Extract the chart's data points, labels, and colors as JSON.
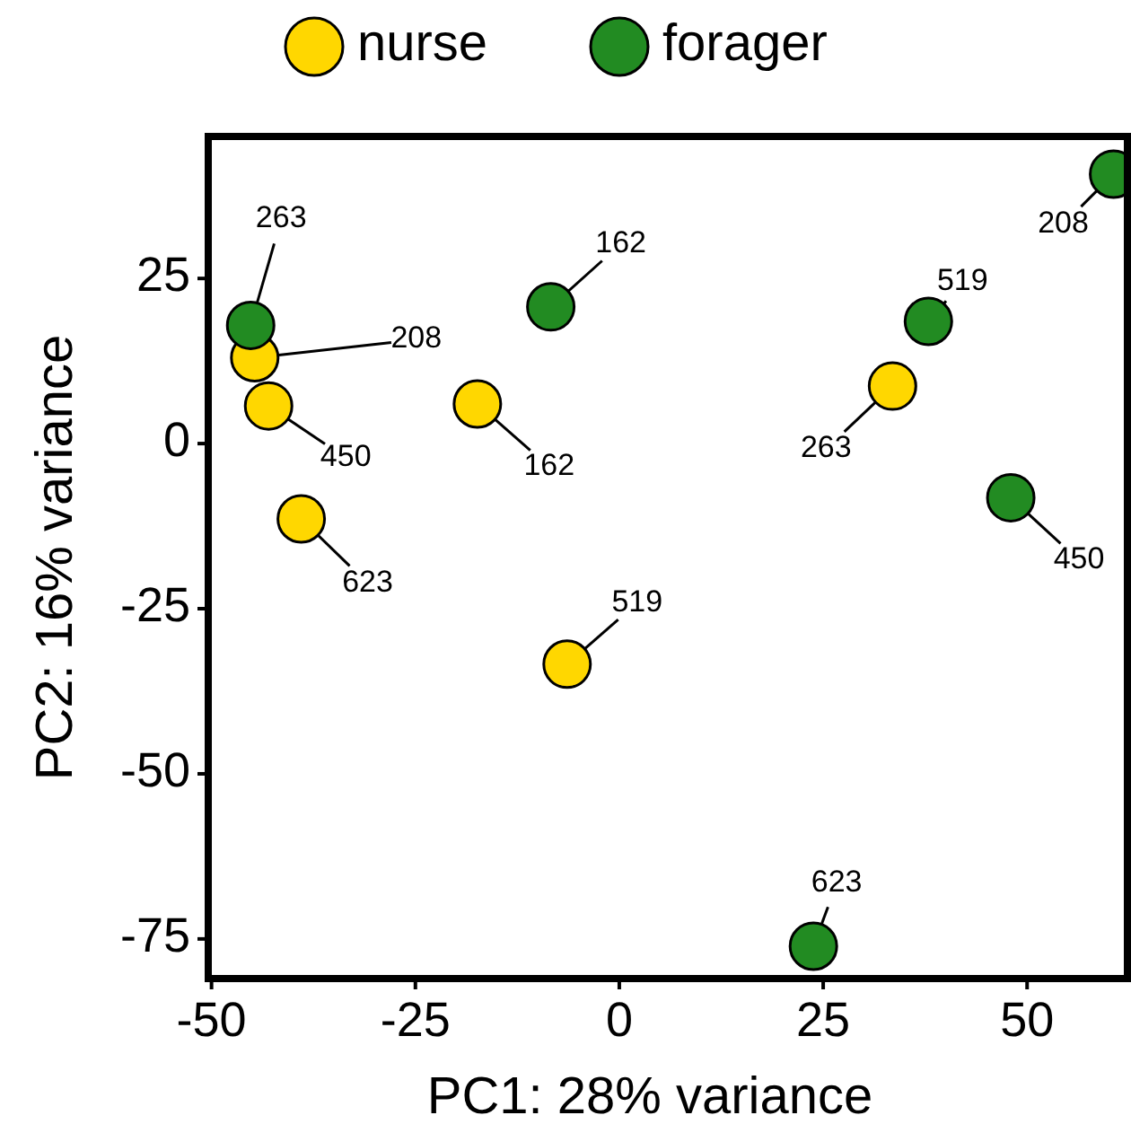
{
  "chart_data": {
    "type": "scatter",
    "xlabel": "PC1: 28% variance",
    "ylabel": "PC2: 16% variance",
    "xlim": [
      -50.4,
      62.3
    ],
    "ylim": [
      -81,
      46.5
    ],
    "xticks": [
      -50,
      -25,
      0,
      25,
      50
    ],
    "yticks": [
      -75,
      -50,
      -25,
      0,
      25
    ],
    "legend": "top",
    "marker": "circle",
    "grid": false,
    "series": [
      {
        "name": "nurse",
        "color": "#ffd700",
        "x": [
          -44.7,
          -43.0,
          -39.0,
          -17.4,
          -6.4,
          33.5
        ],
        "values": [
          13.0,
          5.7,
          -11.4,
          6.0,
          -33.4,
          8.7
        ]
      },
      {
        "name": "forager",
        "color": "#228b22",
        "x": [
          -45.2,
          -8.4,
          37.9,
          60.6,
          48.0,
          23.8
        ],
        "values": [
          17.9,
          20.7,
          18.5,
          40.8,
          -8.2,
          -76.1
        ]
      }
    ],
    "annotations": [
      {
        "text": "208",
        "x": -44.7,
        "y": 13.0
      },
      {
        "text": "450",
        "x": -43.0,
        "y": 5.7
      },
      {
        "text": "623",
        "x": -39.0,
        "y": -11.4
      },
      {
        "text": "162",
        "x": -17.4,
        "y": 6.0
      },
      {
        "text": "519",
        "x": -6.4,
        "y": -33.4
      },
      {
        "text": "263",
        "x": 33.5,
        "y": 8.7
      },
      {
        "text": "263",
        "x": -45.2,
        "y": 17.9
      },
      {
        "text": "162",
        "x": -8.4,
        "y": 20.7
      },
      {
        "text": "519",
        "x": 37.9,
        "y": 18.5
      },
      {
        "text": "208",
        "x": 60.6,
        "y": 40.8
      },
      {
        "text": "450",
        "x": 48.0,
        "y": -8.2
      },
      {
        "text": "623",
        "x": 23.8,
        "y": -76.1
      }
    ]
  }
}
